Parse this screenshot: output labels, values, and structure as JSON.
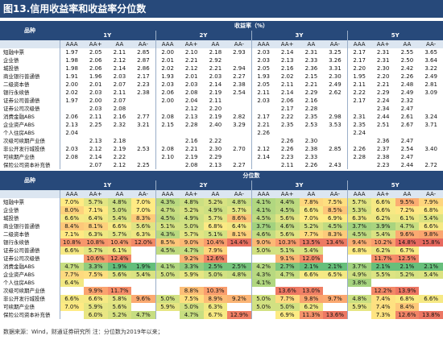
{
  "title": "图13.信用收益率和收益率分位数",
  "tenors": [
    "1Y",
    "2Y",
    "3Y",
    "5Y"
  ],
  "ratings": [
    "AAA",
    "AA+",
    "AA",
    "AA-"
  ],
  "top": {
    "section_label": "品种",
    "group_label": "收益率（%）",
    "rows": [
      {
        "name": "短融中票",
        "values": [
          "1.97",
          "2.05",
          "2.11",
          "2.85",
          "2.00",
          "2.10",
          "2.18",
          "2.93",
          "2.03",
          "2.14",
          "2.31",
          "3.25",
          "2.17",
          "2.31",
          "2.55",
          "3.65"
        ]
      },
      {
        "name": "企业债",
        "values": [
          "1.98",
          "2.06",
          "2.12",
          "2.87",
          "2.01",
          "2.21",
          "2.92",
          "",
          "2.03",
          "2.13",
          "2.33",
          "3.26",
          "2.17",
          "2.31",
          "2.50",
          "3.64"
        ]
      },
      {
        "name": "城投债",
        "values": [
          "1.98",
          "2.06",
          "2.14",
          "2.86",
          "2.02",
          "2.12",
          "2.21",
          "2.94",
          "2.05",
          "2.16",
          "2.36",
          "3.31",
          "2.20",
          "2.30",
          "2.42",
          "3.22"
        ]
      },
      {
        "name": "商业银行普通债",
        "values": [
          "1.91",
          "1.96",
          "2.03",
          "2.17",
          "1.93",
          "2.01",
          "2.03",
          "2.27",
          "1.93",
          "2.02",
          "2.15",
          "2.30",
          "1.95",
          "2.20",
          "2.26",
          "2.49"
        ]
      },
      {
        "name": "二级资本债",
        "values": [
          "2.00",
          "2.01",
          "2.07",
          "2.23",
          "2.03",
          "2.03",
          "2.14",
          "2.38",
          "2.05",
          "2.11",
          "2.21",
          "2.49",
          "2.11",
          "2.21",
          "2.48",
          "2.81"
        ]
      },
      {
        "name": "银行永续债",
        "values": [
          "2.02",
          "2.03",
          "2.11",
          "2.38",
          "2.06",
          "2.08",
          "2.19",
          "2.54",
          "2.11",
          "2.14",
          "2.29",
          "2.62",
          "2.22",
          "2.29",
          "2.49",
          "3.09"
        ]
      },
      {
        "name": "证券公司普通债",
        "values": [
          "1.97",
          "2.00",
          "2.07",
          "",
          "2.00",
          "2.04",
          "2.11",
          "",
          "2.03",
          "2.06",
          "2.16",
          "",
          "2.17",
          "2.24",
          "2.32",
          ""
        ]
      },
      {
        "name": "证券公司次级债",
        "values": [
          "",
          "2.03",
          "2.08",
          "",
          "",
          "2.12",
          "2.20",
          "",
          "",
          "2.17",
          "2.28",
          "",
          "",
          "2.34",
          "2.47",
          ""
        ]
      },
      {
        "name": "消费金融ABS",
        "values": [
          "2.06",
          "2.11",
          "2.16",
          "2.77",
          "2.08",
          "2.13",
          "2.19",
          "2.82",
          "2.17",
          "2.22",
          "2.35",
          "2.98",
          "2.31",
          "2.44",
          "2.61",
          "3.24"
        ]
      },
      {
        "name": "企业资产ABS",
        "values": [
          "2.13",
          "2.25",
          "2.32",
          "3.21",
          "2.15",
          "2.28",
          "2.40",
          "3.29",
          "2.21",
          "2.35",
          "2.53",
          "3.53",
          "2.35",
          "2.51",
          "2.67",
          "3.71"
        ]
      },
      {
        "name": "个人住房ABS",
        "values": [
          "2.04",
          "",
          "",
          "",
          "",
          "",
          "",
          "",
          "2.26",
          "",
          "",
          "",
          "2.24",
          "",
          "",
          ""
        ]
      },
      {
        "name": "次级可续期产业债",
        "values": [
          "",
          "2.13",
          "2.18",
          "",
          "",
          "2.16",
          "2.22",
          "",
          "",
          "2.26",
          "2.30",
          "",
          "",
          "2.36",
          "2.47",
          ""
        ]
      },
      {
        "name": "非公开发行城投债",
        "values": [
          "2.03",
          "2.12",
          "2.19",
          "2.53",
          "2.08",
          "2.21",
          "2.30",
          "2.70",
          "2.12",
          "2.26",
          "2.38",
          "2.85",
          "2.26",
          "2.37",
          "2.54",
          "3.40"
        ]
      },
      {
        "name": "可续期产业债",
        "values": [
          "2.08",
          "2.14",
          "2.22",
          "",
          "2.10",
          "2.19",
          "2.29",
          "",
          "2.14",
          "2.23",
          "2.33",
          "",
          "2.28",
          "2.38",
          "2.47",
          ""
        ]
      },
      {
        "name": "保险公司资本补充债",
        "values": [
          "",
          "2.07",
          "2.12",
          "2.25",
          "",
          "2.08",
          "2.13",
          "2.27",
          "",
          "2.11",
          "2.26",
          "2.43",
          "",
          "2.23",
          "2.44",
          "2.72"
        ]
      }
    ]
  },
  "bottom": {
    "section_label": "品种",
    "group_label": "分位数",
    "rows": [
      {
        "name": "短融中票",
        "values": [
          "7.0%",
          "5.7%",
          "4.8%",
          "7.0%",
          "4.3%",
          "4.8%",
          "5.2%",
          "4.8%",
          "4.1%",
          "4.4%",
          "7.8%",
          "7.5%",
          "5.7%",
          "6.6%",
          "9.5%",
          "7.9%"
        ]
      },
      {
        "name": "企业债",
        "values": [
          "8.0%",
          "7.1%",
          "5.0%",
          "7.0%",
          "4.7%",
          "5.2%",
          "4.9%",
          "5.7%",
          "4.1%",
          "4.5%",
          "6.6%",
          "8.5%",
          "5.3%",
          "6.6%",
          "7.2%",
          "6.8%"
        ]
      },
      {
        "name": "城投债",
        "values": [
          "6.6%",
          "6.4%",
          "5.4%",
          "8.3%",
          "4.5%",
          "4.9%",
          "5.7%",
          "8.6%",
          "4.5%",
          "5.6%",
          "7.0%",
          "6.9%",
          "6.3%",
          "6.2%",
          "6.1%",
          "5.4%"
        ]
      },
      {
        "name": "商业银行普通债",
        "values": [
          "8.4%",
          "8.1%",
          "6.6%",
          "5.6%",
          "5.1%",
          "5.0%",
          "6.8%",
          "6.4%",
          "3.7%",
          "4.6%",
          "5.2%",
          "4.5%",
          "3.7%",
          "3.9%",
          "4.7%",
          "6.6%"
        ]
      },
      {
        "name": "二级资本债",
        "values": [
          "7.1%",
          "6.3%",
          "5.7%",
          "6.3%",
          "4.3%",
          "5.7%",
          "5.1%",
          "8.1%",
          "4.6%",
          "5.6%",
          "7.7%",
          "8.3%",
          "4.5%",
          "5.4%",
          "9.6%",
          "9.8%"
        ]
      },
      {
        "name": "银行永续债",
        "values": [
          "10.8%",
          "10.8%",
          "10.4%",
          "12.0%",
          "8.5%",
          "9.0%",
          "10.4%",
          "14.4%",
          "9.0%",
          "10.3%",
          "13.5%",
          "13.4%",
          "9.4%",
          "10.2%",
          "14.8%",
          "15.8%"
        ]
      },
      {
        "name": "证券公司普通债",
        "values": [
          "6.6%",
          "5.7%",
          "6.1%",
          "",
          "4.5%",
          "4.7%",
          "7.9%",
          "",
          "5.0%",
          "5.1%",
          "5.4%",
          "",
          "6.8%",
          "6.2%",
          "6.7%",
          ""
        ]
      },
      {
        "name": "证券公司次级债",
        "values": [
          "",
          "10.6%",
          "12.4%",
          "",
          "",
          "9.2%",
          "12.6%",
          "",
          "",
          "9.1%",
          "12.0%",
          "",
          "",
          "11.7%",
          "12.5%",
          ""
        ]
      },
      {
        "name": "消费金融ABS",
        "values": [
          "4.7%",
          "3.3%",
          "1.9%",
          "1.9%",
          "4.1%",
          "3.3%",
          "2.5%",
          "2.5%",
          "4.2%",
          "2.7%",
          "2.1%",
          "2.1%",
          "3.7%",
          "2.1%",
          "2.1%",
          "2.1%"
        ]
      },
      {
        "name": "企业资产ABS",
        "values": [
          "7.7%",
          "7.5%",
          "5.6%",
          "5.4%",
          "5.0%",
          "5.9%",
          "5.0%",
          "4.8%",
          "4.3%",
          "4.7%",
          "6.6%",
          "6.5%",
          "4.9%",
          "5.5%",
          "5.2%",
          "5.4%"
        ]
      },
      {
        "name": "个人住房ABS",
        "values": [
          "6.4%",
          "",
          "",
          "",
          "",
          "",
          "",
          "",
          "4.1%",
          "",
          "",
          "",
          "3.8%",
          "",
          "",
          ""
        ]
      },
      {
        "name": "次级可续期产业债",
        "values": [
          "",
          "9.9%",
          "11.7%",
          "",
          "",
          "8.8%",
          "10.3%",
          "",
          "",
          "13.6%",
          "13.0%",
          "",
          "",
          "12.2%",
          "13.9%",
          ""
        ]
      },
      {
        "name": "非公开发行城投债",
        "values": [
          "6.6%",
          "6.6%",
          "5.8%",
          "9.6%",
          "5.0%",
          "7.5%",
          "8.9%",
          "9.2%",
          "5.0%",
          "7.7%",
          "9.8%",
          "9.7%",
          "4.8%",
          "7.4%",
          "6.8%",
          "6.6%"
        ]
      },
      {
        "name": "可续期产业债",
        "values": [
          "7.0%",
          "5.9%",
          "5.6%",
          "",
          "5.9%",
          "5.0%",
          "6.3%",
          "",
          "5.0%",
          "5.0%",
          "6.2%",
          "",
          "5.9%",
          "7.4%",
          "8.4%",
          ""
        ]
      },
      {
        "name": "保险公司资本补充债",
        "values": [
          "",
          "6.0%",
          "5.2%",
          "4.7%",
          "",
          "4.7%",
          "6.7%",
          "12.9%",
          "",
          "6.9%",
          "11.3%",
          "13.6%",
          "",
          "7.3%",
          "12.6%",
          "13.8%"
        ]
      }
    ]
  },
  "footer": "数据来源：Wind，财通证券研究所    注：分位数为2019年以来；"
}
